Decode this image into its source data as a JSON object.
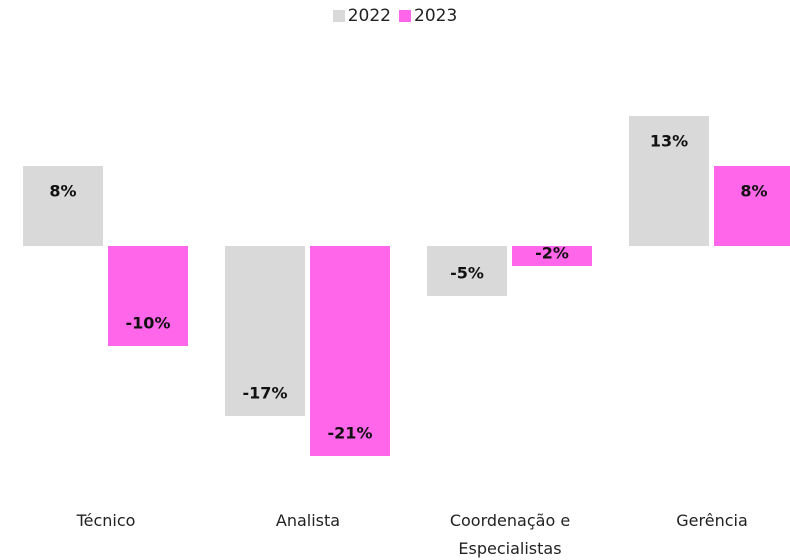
{
  "chart_data": {
    "type": "bar",
    "categories": [
      "Técnico",
      "Analista",
      "Coordenação e Especialistas",
      "Gerência"
    ],
    "series": [
      {
        "name": "2022",
        "color": "#d9d9d9",
        "values": [
          8,
          -17,
          -5,
          13
        ],
        "value_labels": [
          "8%",
          "-17%",
          "-5%",
          "13%"
        ]
      },
      {
        "name": "2023",
        "color": "#ff66ea",
        "values": [
          -10,
          -21,
          -2,
          8
        ],
        "value_labels": [
          "-10%",
          "-21%",
          "-2%",
          "8%"
        ]
      }
    ],
    "ylim": [
      -25,
      15
    ]
  }
}
